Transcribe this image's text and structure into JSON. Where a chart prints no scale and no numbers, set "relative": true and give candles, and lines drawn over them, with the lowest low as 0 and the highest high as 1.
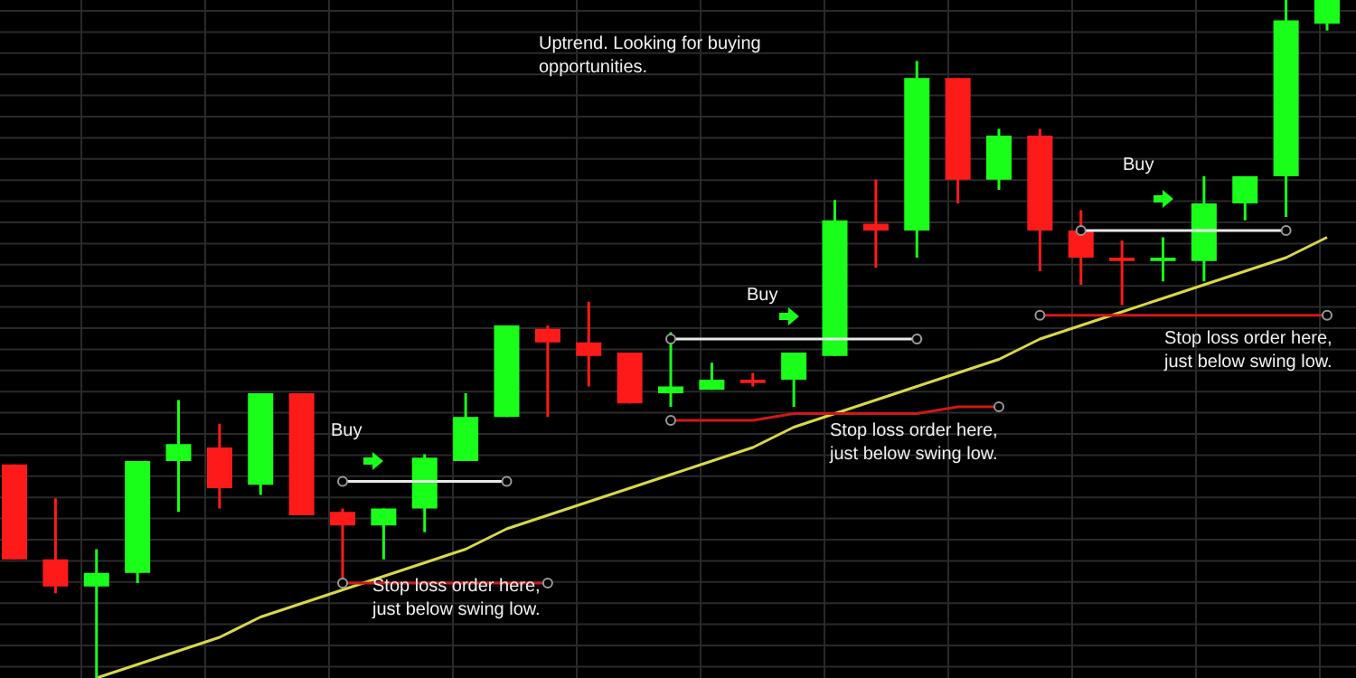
{
  "chart_data": {
    "type": "candlestick",
    "relative": true,
    "grid": true,
    "categories": [
      null,
      null,
      null,
      null,
      null,
      null,
      null,
      null,
      null,
      null,
      null,
      null,
      null,
      null,
      null,
      null,
      null,
      null,
      null,
      null,
      null,
      null,
      null,
      null,
      null,
      null,
      null,
      null,
      null,
      null,
      null,
      null,
      null
    ],
    "ohlc": [
      [
        0.315,
        0.315,
        0.175,
        0.175
      ],
      [
        0.175,
        0.265,
        0.125,
        0.135
      ],
      [
        0.135,
        0.19,
        0,
        0.155
      ],
      [
        0.155,
        0.32,
        0.14,
        0.32
      ],
      [
        0.32,
        0.41,
        0.245,
        0.345
      ],
      [
        0.34,
        0.375,
        0.25,
        0.28
      ],
      [
        0.285,
        0.42,
        0.27,
        0.42
      ],
      [
        0.42,
        0.42,
        0.24,
        0.24
      ],
      [
        0.245,
        0.25,
        0.14,
        0.225
      ],
      [
        0.225,
        0.25,
        0.175,
        0.25
      ],
      [
        0.25,
        0.33,
        0.215,
        0.325
      ],
      [
        0.32,
        0.42,
        0.32,
        0.385
      ],
      [
        0.385,
        0.52,
        0.385,
        0.52
      ],
      [
        0.515,
        0.52,
        0.385,
        0.495
      ],
      [
        0.495,
        0.555,
        0.43,
        0.475
      ],
      [
        0.48,
        0.48,
        0.405,
        0.405
      ],
      [
        0.42,
        0.51,
        0.4,
        0.43
      ],
      [
        0.425,
        0.465,
        0.425,
        0.44
      ],
      [
        0.44,
        0.45,
        0.43,
        0.435
      ],
      [
        0.44,
        0.48,
        0.4,
        0.48
      ],
      [
        0.475,
        0.705,
        0.475,
        0.675
      ],
      [
        0.67,
        0.735,
        0.605,
        0.66
      ],
      [
        0.66,
        0.91,
        0.62,
        0.885
      ],
      [
        0.885,
        0.885,
        0.7,
        0.735
      ],
      [
        0.735,
        0.81,
        0.72,
        0.8
      ],
      [
        0.8,
        0.81,
        0.6,
        0.66
      ],
      [
        0.66,
        0.69,
        0.58,
        0.62
      ],
      [
        0.62,
        0.645,
        0.55,
        0.615
      ],
      [
        0.615,
        0.65,
        0.585,
        0.62
      ],
      [
        0.615,
        0.74,
        0.585,
        0.7
      ],
      [
        0.7,
        0.74,
        0.675,
        0.74
      ],
      [
        0.74,
        1,
        0.68,
        0.97
      ],
      [
        0.965,
        1,
        0.955,
        1
      ]
    ],
    "colors": [
      "#ff1a1a",
      "#ff1a1a",
      "#1aff1a",
      "#1aff1a",
      "#1aff1a",
      "#ff1a1a",
      "#1aff1a",
      "#ff1a1a",
      "#ff1a1a",
      "#1aff1a",
      "#1aff1a",
      "#1aff1a",
      "#1aff1a",
      "#ff1a1a",
      "#ff1a1a",
      "#ff1a1a",
      "#1aff1a",
      "#1aff1a",
      "#ff1a1a",
      "#1aff1a",
      "#1aff1a",
      "#ff1a1a",
      "#1aff1a",
      "#ff1a1a",
      "#1aff1a",
      "#ff1a1a",
      "#ff1a1a",
      "#ff1a1a",
      "#1aff1a",
      "#1aff1a",
      "#1aff1a",
      "#1aff1a",
      "#1aff1a"
    ],
    "series": [
      {
        "type": "line",
        "color": "#d8d84a",
        "values": [
          null,
          null,
          0,
          0.02,
          0.04,
          0.06,
          0.09,
          0.11,
          0.13,
          0.15,
          0.17,
          0.19,
          0.22,
          0.24,
          0.26,
          0.28,
          0.3,
          0.32,
          0.34,
          0.37,
          0.39,
          0.41,
          0.43,
          0.45,
          0.47,
          0.5,
          0.52,
          0.54,
          0.56,
          0.58,
          0.6,
          0.62,
          0.65
        ]
      },
      {
        "type": "line",
        "color": "#e8e8e8",
        "values": [
          null,
          null,
          null,
          null,
          null,
          null,
          null,
          null,
          0.29,
          0.29,
          0.29,
          0.29,
          0.29,
          null,
          null,
          null,
          null,
          null,
          null,
          null,
          null,
          null,
          null,
          null,
          null,
          null,
          null,
          null,
          null,
          null,
          null,
          null,
          null
        ]
      },
      {
        "type": "line",
        "color": "#d01818",
        "values": [
          null,
          null,
          null,
          null,
          null,
          null,
          null,
          null,
          0.14,
          0.14,
          0.14,
          0.14,
          0.14,
          0.14,
          null,
          null,
          null,
          null,
          null,
          null,
          null,
          null,
          null,
          null,
          null,
          null,
          null,
          null,
          null,
          null,
          null,
          null,
          null
        ]
      },
      {
        "type": "line",
        "color": "#e8e8e8",
        "values": [
          null,
          null,
          null,
          null,
          null,
          null,
          null,
          null,
          null,
          null,
          null,
          null,
          null,
          null,
          null,
          null,
          0.5,
          0.5,
          0.5,
          0.5,
          0.5,
          0.5,
          0.5,
          null,
          null,
          null,
          null,
          null,
          null,
          null,
          null,
          null,
          null
        ]
      },
      {
        "type": "line",
        "color": "#d01818",
        "values": [
          null,
          null,
          null,
          null,
          null,
          null,
          null,
          null,
          null,
          null,
          null,
          null,
          null,
          null,
          null,
          null,
          0.38,
          0.38,
          0.38,
          0.39,
          0.39,
          0.39,
          0.39,
          0.4,
          0.4,
          null,
          null,
          null,
          null,
          null,
          null,
          null,
          null
        ]
      },
      {
        "type": "line",
        "color": "#e8e8e8",
        "values": [
          null,
          null,
          null,
          null,
          null,
          null,
          null,
          null,
          null,
          null,
          null,
          null,
          null,
          null,
          null,
          null,
          null,
          null,
          null,
          null,
          null,
          null,
          null,
          null,
          null,
          null,
          0.66,
          0.66,
          0.66,
          0.66,
          0.66,
          0.66,
          null
        ]
      },
      {
        "type": "line",
        "color": "#d01818",
        "values": [
          null,
          null,
          null,
          null,
          null,
          null,
          null,
          null,
          null,
          null,
          null,
          null,
          null,
          null,
          null,
          null,
          null,
          null,
          null,
          null,
          null,
          null,
          null,
          null,
          null,
          0.535,
          0.535,
          0.535,
          0.535,
          0.535,
          0.535,
          0.535,
          0.535
        ]
      }
    ],
    "annotations": [
      "Uptrend. Looking for buying opportunities.",
      "Buy",
      "Stop loss order here, just below swing low.",
      "Buy",
      "Stop loss order here, just below swing low.",
      "Buy",
      "Stop loss order here, just below swing low."
    ]
  }
}
